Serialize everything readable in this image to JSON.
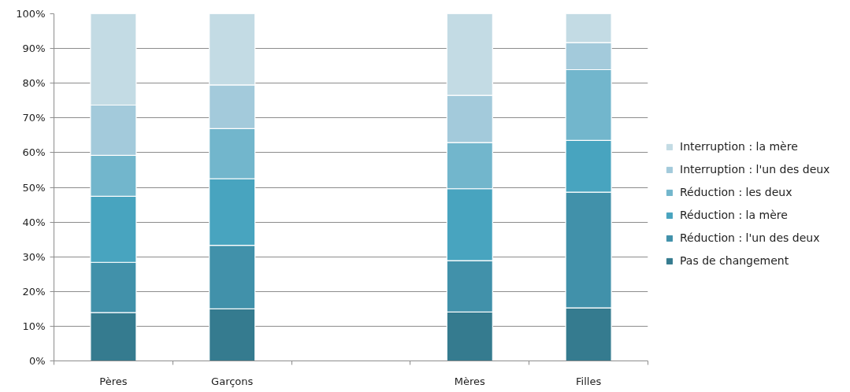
{
  "chart_data": {
    "type": "bar",
    "stacked": true,
    "categories": [
      "Pères",
      "Garçons",
      null,
      "Mères",
      "Filles"
    ],
    "series": [
      {
        "name": "Pas de changement",
        "color": "#357b8f",
        "values": [
          13.9,
          15.0,
          null,
          14.1,
          15.3
        ]
      },
      {
        "name": "Réduction : l'un des deux",
        "color": "#4191aa",
        "values": [
          14.5,
          18.3,
          null,
          14.8,
          33.3
        ]
      },
      {
        "name": "Réduction : la mère",
        "color": "#48a4bf",
        "values": [
          19.0,
          19.2,
          null,
          20.7,
          14.9
        ]
      },
      {
        "name": "Réduction : les deux",
        "color": "#72b6cc",
        "values": [
          11.8,
          14.4,
          null,
          13.3,
          20.4
        ]
      },
      {
        "name": "Interruption : l'un des deux",
        "color": "#a3cadb",
        "values": [
          14.5,
          12.6,
          null,
          13.6,
          7.8
        ]
      },
      {
        "name": "Interruption : la mère",
        "color": "#c3dbe4",
        "values": [
          26.3,
          20.5,
          null,
          23.5,
          8.3
        ]
      }
    ],
    "ylim": [
      0,
      100
    ],
    "yticks": [
      {
        "value": 0,
        "label": "0%"
      },
      {
        "value": 10,
        "label": "10%"
      },
      {
        "value": 20,
        "label": "20%"
      },
      {
        "value": 30,
        "label": "30%"
      },
      {
        "value": 40,
        "label": "40%"
      },
      {
        "value": 50,
        "label": "50%"
      },
      {
        "value": 60,
        "label": "60%"
      },
      {
        "value": 70,
        "label": "70%"
      },
      {
        "value": 80,
        "label": "80%"
      },
      {
        "value": 90,
        "label": "90%"
      },
      {
        "value": 100,
        "label": "100%"
      }
    ],
    "grid": "y",
    "legend": "right"
  }
}
